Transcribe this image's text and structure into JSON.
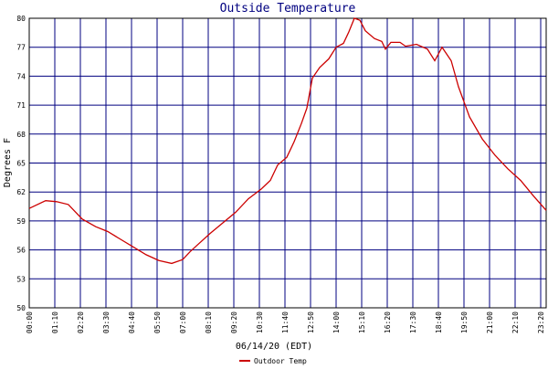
{
  "chart_data": {
    "type": "line",
    "title": "Outside Temperature",
    "x_label": "06/14/20 (EDT)",
    "y_label": "Degrees F",
    "x": [
      "00:00",
      "00:45",
      "01:15",
      "01:47",
      "02:25",
      "03:02",
      "03:35",
      "04:10",
      "04:45",
      "05:20",
      "05:55",
      "06:30",
      "07:00",
      "07:20",
      "07:40",
      "08:15",
      "08:50",
      "09:25",
      "10:00",
      "10:35",
      "11:00",
      "11:20",
      "11:45",
      "12:05",
      "12:25",
      "12:40",
      "12:55",
      "13:15",
      "13:40",
      "14:00",
      "14:20",
      "14:35",
      "14:50",
      "15:05",
      "15:20",
      "15:45",
      "16:05",
      "16:15",
      "16:30",
      "16:55",
      "17:10",
      "17:40",
      "18:10",
      "18:30",
      "18:50",
      "19:15",
      "19:35",
      "20:05",
      "20:40",
      "21:15",
      "21:50",
      "22:25",
      "23:00",
      "23:35"
    ],
    "series": [
      {
        "name": "Outdoor Temp",
        "color": "#cc0000",
        "values": [
          60.3,
          61.1,
          61.0,
          60.7,
          59.2,
          58.4,
          57.9,
          57.1,
          56.3,
          55.5,
          54.9,
          54.6,
          55.0,
          55.8,
          56.5,
          57.7,
          58.8,
          59.9,
          61.3,
          62.3,
          63.2,
          64.8,
          65.6,
          67.2,
          69.1,
          70.7,
          73.8,
          74.9,
          75.8,
          77.0,
          77.4,
          78.6,
          80.0,
          79.8,
          78.7,
          77.9,
          77.6,
          76.8,
          77.5,
          77.5,
          77.1,
          77.3,
          76.8,
          75.6,
          77.0,
          75.6,
          72.9,
          69.8,
          67.5,
          65.8,
          64.4,
          63.2,
          61.6,
          60.1
        ]
      }
    ],
    "xlim": [
      "00:00",
      "23:35"
    ],
    "xticks": [
      "00:00",
      "01:10",
      "02:20",
      "03:30",
      "04:40",
      "05:50",
      "07:00",
      "08:10",
      "09:20",
      "10:30",
      "11:40",
      "12:50",
      "14:00",
      "15:10",
      "16:20",
      "17:30",
      "18:40",
      "19:50",
      "21:00",
      "22:10",
      "23:20"
    ],
    "ylim": [
      50,
      80
    ],
    "yticks": [
      50,
      53,
      56,
      59,
      62,
      65,
      68,
      71,
      74,
      77,
      80
    ],
    "grid": true,
    "grid_color": "#000080",
    "legend": "bottom"
  }
}
